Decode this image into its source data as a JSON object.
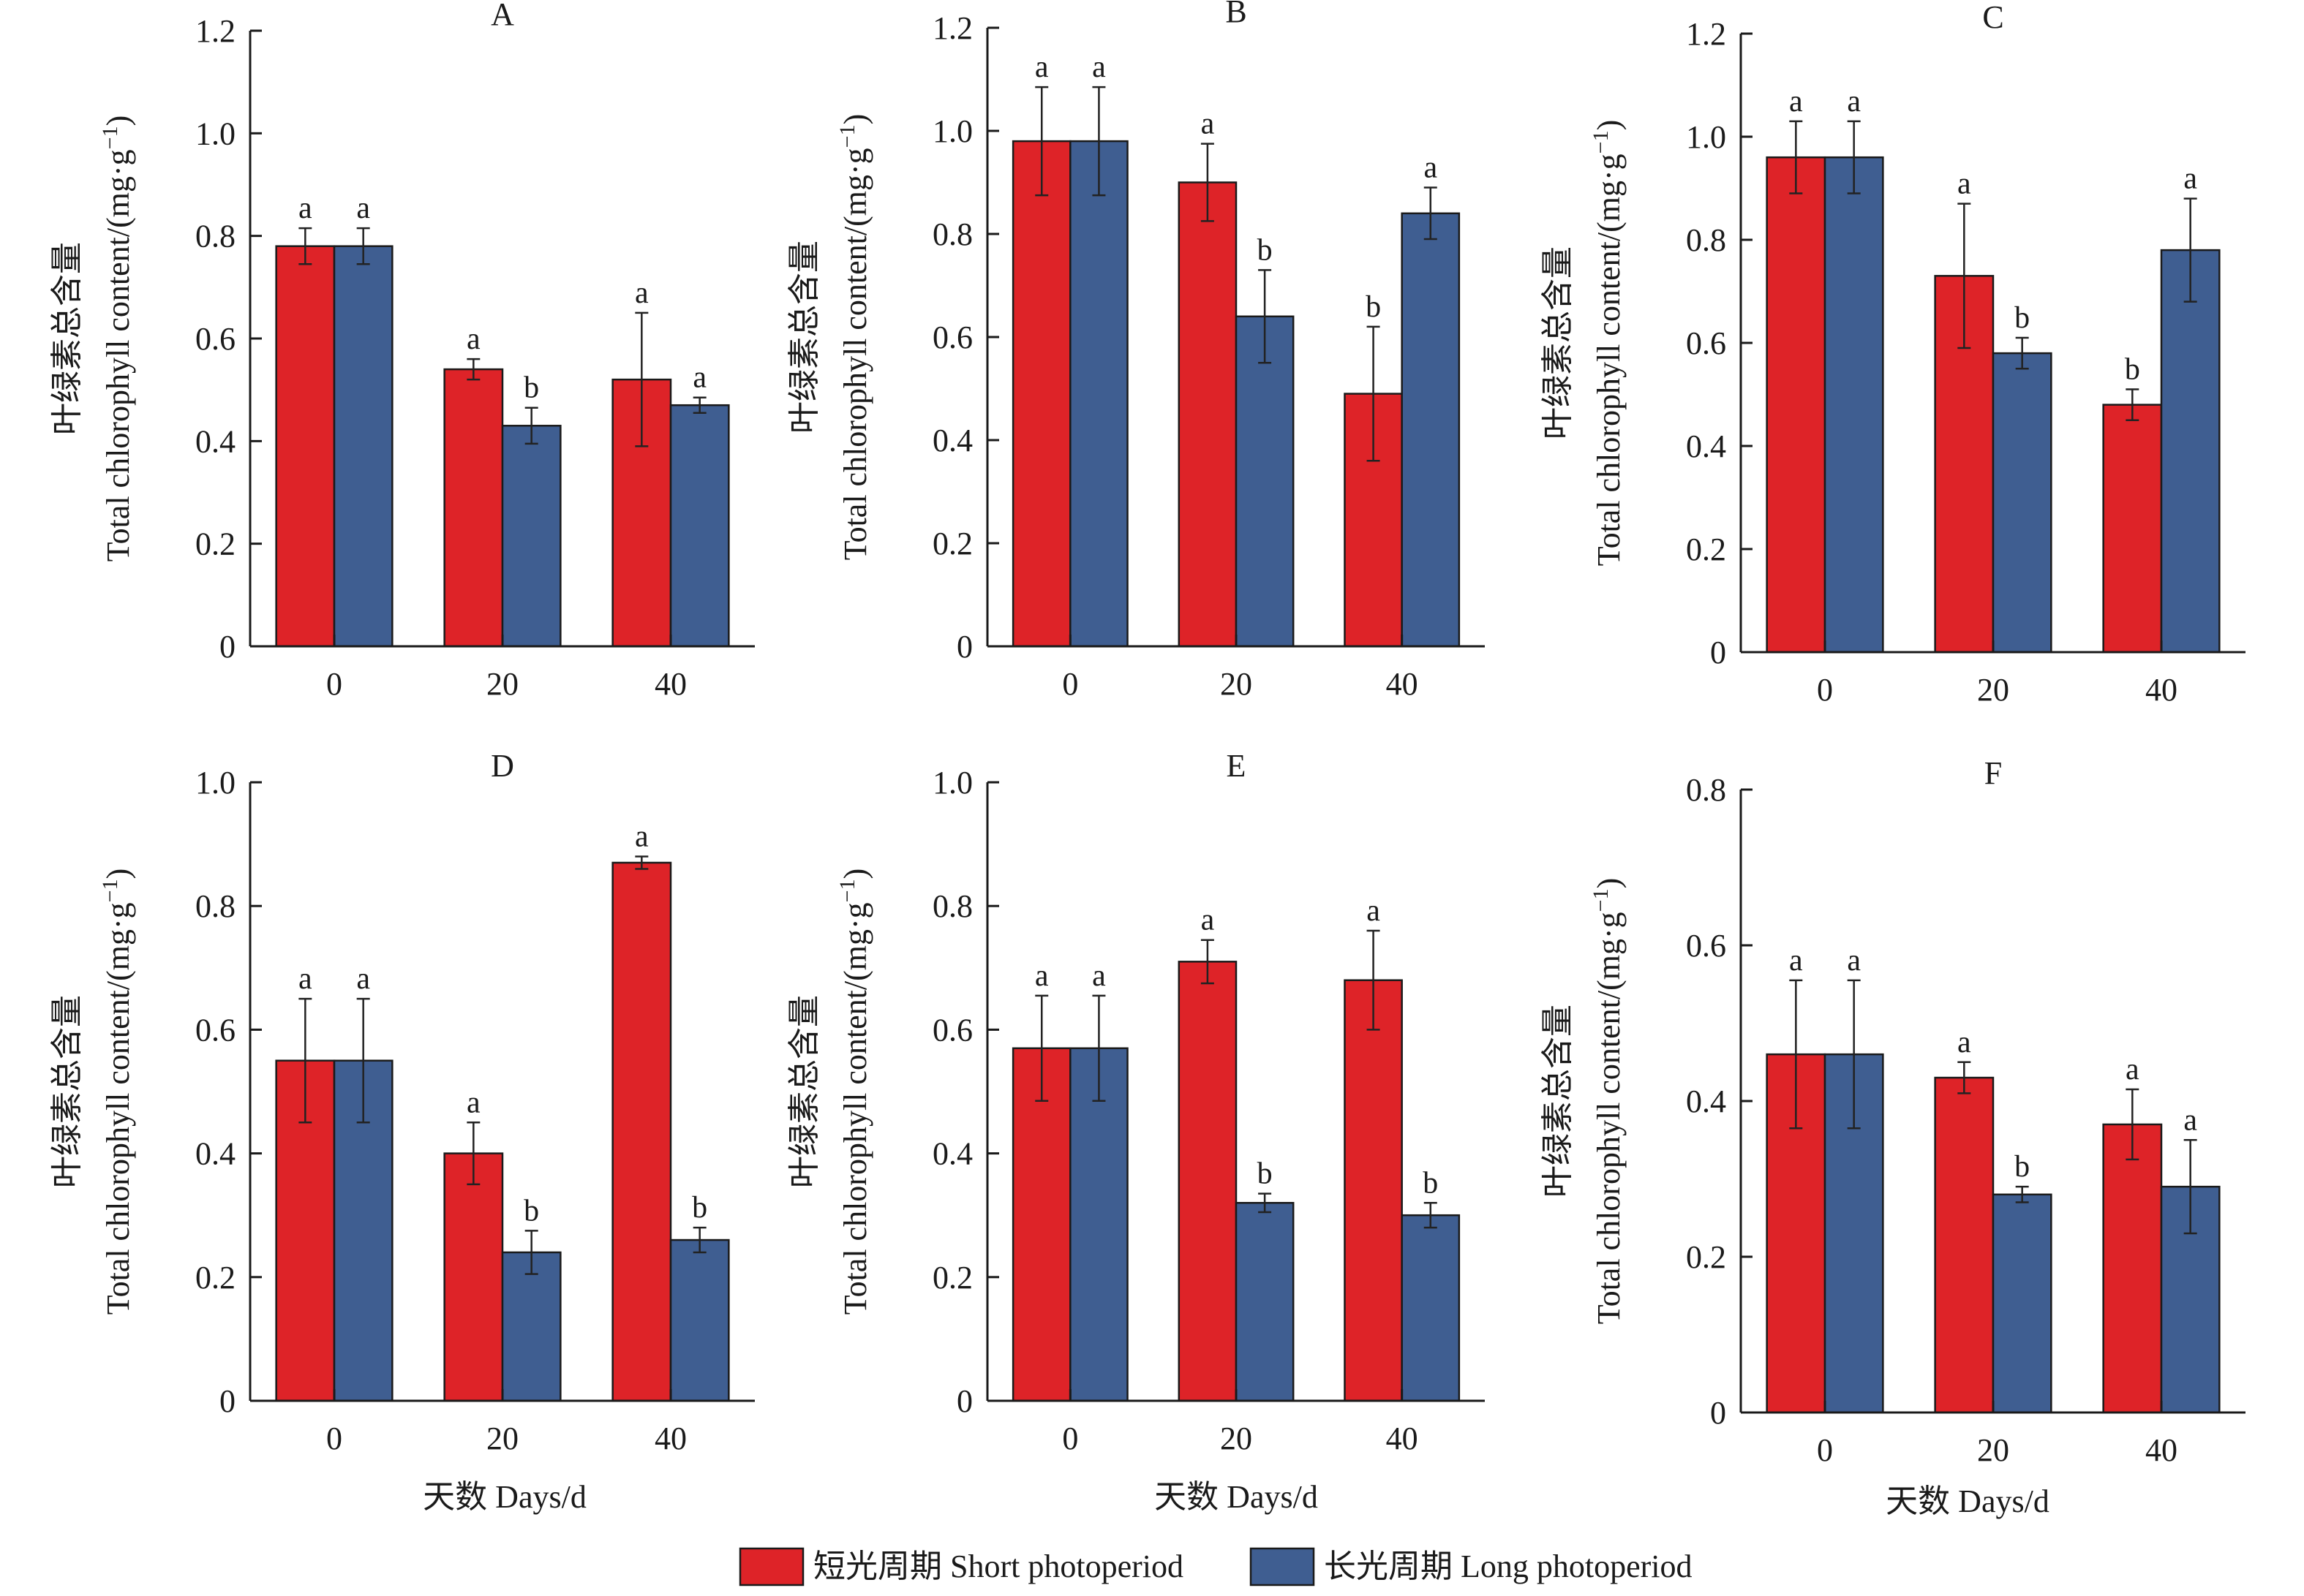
{
  "colors": {
    "short": "#de2328",
    "long": "#3f5e91"
  },
  "legend": {
    "short_label": "短光周期 Short photoperiod",
    "long_label": "长光周期 Long photoperiod"
  },
  "x_title": "天数 Days/d",
  "y_title_cn": "叶绿素总含量",
  "y_title_en": "Total chlorophyll content/(mg·g",
  "y_title_sup": "−1",
  "y_title_close": ")",
  "chart_data": [
    {
      "type": "bar",
      "panel": "A",
      "title": "A",
      "categories": [
        "0",
        "20",
        "40"
      ],
      "ylim": [
        0,
        1.2
      ],
      "yticks": [
        "0",
        "0.2",
        "0.4",
        "0.6",
        "0.8",
        "1.0",
        "1.2"
      ],
      "series": [
        {
          "name": "短光周期 Short photoperiod",
          "values": [
            0.78,
            0.54,
            0.52
          ],
          "errors": [
            0.035,
            0.02,
            0.13
          ],
          "letters": [
            "a",
            "a",
            "a"
          ]
        },
        {
          "name": "长光周期 Long photoperiod",
          "values": [
            0.78,
            0.43,
            0.47
          ],
          "errors": [
            0.035,
            0.035,
            0.015
          ],
          "letters": [
            "a",
            "b",
            "a"
          ]
        }
      ]
    },
    {
      "type": "bar",
      "panel": "B",
      "title": "B",
      "categories": [
        "0",
        "20",
        "40"
      ],
      "ylim": [
        0,
        1.2
      ],
      "yticks": [
        "0",
        "0.2",
        "0.4",
        "0.6",
        "0.8",
        "1.0",
        "1.2"
      ],
      "series": [
        {
          "name": "短光周期 Short photoperiod",
          "values": [
            0.98,
            0.9,
            0.49
          ],
          "errors": [
            0.105,
            0.075,
            0.13
          ],
          "letters": [
            "a",
            "a",
            "b"
          ]
        },
        {
          "name": "长光周期 Long photoperiod",
          "values": [
            0.98,
            0.64,
            0.84
          ],
          "errors": [
            0.105,
            0.09,
            0.05
          ],
          "letters": [
            "a",
            "b",
            "a"
          ]
        }
      ]
    },
    {
      "type": "bar",
      "panel": "C",
      "title": "C",
      "categories": [
        "0",
        "20",
        "40"
      ],
      "ylim": [
        0,
        1.2
      ],
      "yticks": [
        "0",
        "0.2",
        "0.4",
        "0.6",
        "0.8",
        "1.0",
        "1.2"
      ],
      "series": [
        {
          "name": "短光周期 Short photoperiod",
          "values": [
            0.96,
            0.73,
            0.48
          ],
          "errors": [
            0.07,
            0.14,
            0.03
          ],
          "letters": [
            "a",
            "a",
            "b"
          ]
        },
        {
          "name": "长光周期 Long photoperiod",
          "values": [
            0.96,
            0.58,
            0.78
          ],
          "errors": [
            0.07,
            0.03,
            0.1
          ],
          "letters": [
            "a",
            "b",
            "a"
          ]
        }
      ]
    },
    {
      "type": "bar",
      "panel": "D",
      "title": "D",
      "categories": [
        "0",
        "20",
        "40"
      ],
      "ylim": [
        0,
        1.0
      ],
      "yticks": [
        "0",
        "0.2",
        "0.4",
        "0.6",
        "0.8",
        "1.0"
      ],
      "series": [
        {
          "name": "短光周期 Short photoperiod",
          "values": [
            0.55,
            0.4,
            0.87
          ],
          "errors": [
            0.1,
            0.05,
            0.01
          ],
          "letters": [
            "a",
            "a",
            "a"
          ]
        },
        {
          "name": "长光周期 Long photoperiod",
          "values": [
            0.55,
            0.24,
            0.26
          ],
          "errors": [
            0.1,
            0.035,
            0.02
          ],
          "letters": [
            "a",
            "b",
            "b"
          ]
        }
      ]
    },
    {
      "type": "bar",
      "panel": "E",
      "title": "E",
      "categories": [
        "0",
        "20",
        "40"
      ],
      "ylim": [
        0,
        1.0
      ],
      "yticks": [
        "0",
        "0.2",
        "0.4",
        "0.6",
        "0.8",
        "1.0"
      ],
      "series": [
        {
          "name": "短光周期 Short photoperiod",
          "values": [
            0.57,
            0.71,
            0.68
          ],
          "errors": [
            0.085,
            0.035,
            0.08
          ],
          "letters": [
            "a",
            "a",
            "a"
          ]
        },
        {
          "name": "长光周期 Long photoperiod",
          "values": [
            0.57,
            0.32,
            0.3
          ],
          "errors": [
            0.085,
            0.015,
            0.02
          ],
          "letters": [
            "a",
            "b",
            "b"
          ]
        }
      ]
    },
    {
      "type": "bar",
      "panel": "F",
      "title": "F",
      "categories": [
        "0",
        "20",
        "40"
      ],
      "ylim": [
        0,
        0.8
      ],
      "yticks": [
        "0",
        "0.2",
        "0.4",
        "0.6",
        "0.8"
      ],
      "series": [
        {
          "name": "短光周期 Short photoperiod",
          "values": [
            0.46,
            0.43,
            0.37
          ],
          "errors": [
            0.095,
            0.02,
            0.045
          ],
          "letters": [
            "a",
            "a",
            "a"
          ]
        },
        {
          "name": "长光周期 Long photoperiod",
          "values": [
            0.46,
            0.28,
            0.29
          ],
          "errors": [
            0.095,
            0.01,
            0.06
          ],
          "letters": [
            "a",
            "b",
            "a"
          ]
        }
      ]
    }
  ]
}
